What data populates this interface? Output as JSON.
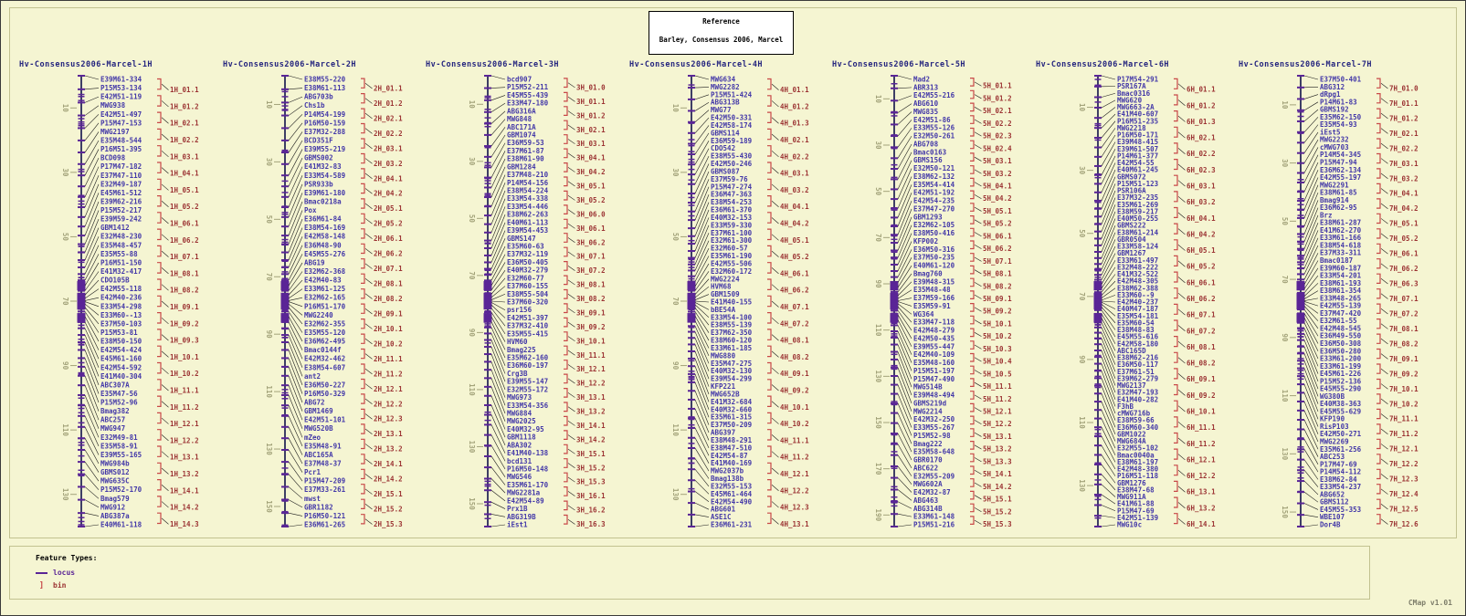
{
  "header": {
    "reference_label": "Reference",
    "reference_value": "Barley, Consensus 2006, Marcel"
  },
  "footer": {
    "feature_types_label": "Feature Types:",
    "locus_label": "locus",
    "bin_label": "bin",
    "bin_glyph": "]"
  },
  "app": {
    "version": "CMap v1.01"
  },
  "colors": {
    "background": "#f5f5d2",
    "panel_border": "#c2c290",
    "backbone": "#10104a",
    "feature_purple": "#5a2596",
    "locus_text": "#4338a8",
    "bin_text": "#9c3434",
    "bracket_red": "#c84848",
    "ruler": "#a3a37a",
    "title_text": "#24247e",
    "connector": "#1c1c1c"
  },
  "chart_data": {
    "type": "linkage-map",
    "title": "Barley, Consensus 2006, Marcel",
    "legend_position": "bottom-left",
    "maps": [
      {
        "name": "Hv-Consensus2006-Marcel-1H",
        "ruler_ticks": [
          10,
          30,
          50,
          70,
          90,
          110,
          130
        ],
        "max_position": 140,
        "loci": [
          "E39M61-334",
          "P15M53-134",
          "E42M51-119",
          "MWG938",
          "E42M51-497",
          "P15M47-153",
          "MWG2197",
          "E35M48-544",
          "P16M51-395",
          "BCD098",
          "P17M47-182",
          "E37M47-110",
          "E32M49-187",
          "E45M61-512",
          "E39M62-216",
          "P15M52-217",
          "E39M59-242",
          "GBM1412",
          "E32M48-230",
          "E35M48-457",
          "E35M55-88",
          "P16M51-150",
          "E41M32-417",
          "CDO105B",
          "E42M55-118",
          "E42M40-236",
          "E33M54-298",
          "E33M60--13",
          "E37M50-103",
          "P15M53-81",
          "E38M50-150",
          "E42M54-424",
          "E45M61-160",
          "E42M54-592",
          "E41M40-304",
          "ABC307A",
          "E35M47-56",
          "P15M52-96",
          "Bmag382",
          "ABC257",
          "MWG947",
          "E32M49-81",
          "E35M58-91",
          "E39M55-165",
          "MWG984b",
          "GBMS012",
          "MWG635C",
          "P15M52-170",
          "Bmag579",
          "MWG912",
          "ABG387a",
          "E40M61-118"
        ],
        "bins": [
          "1H_01.1",
          "1H_01.2",
          "1H_02.1",
          "1H_02.2",
          "1H_03.1",
          "1H_04.1",
          "1H_05.1",
          "1H_05.2",
          "1H_06.1",
          "1H_06.2",
          "1H_07.1",
          "1H_08.1",
          "1H_08.2",
          "1H_09.1",
          "1H_09.2",
          "1H_09.3",
          "1H_10.1",
          "1H_10.2",
          "1H_11.1",
          "1H_11.2",
          "1H_12.1",
          "1H_12.2",
          "1H_13.1",
          "1H_13.2",
          "1H_14.1",
          "1H_14.2",
          "1H_14.3"
        ]
      },
      {
        "name": "Hv-Consensus2006-Marcel-2H",
        "ruler_ticks": [
          10,
          30,
          50,
          70,
          90,
          110,
          130,
          150
        ],
        "max_position": 157,
        "loci": [
          "E38M55-220",
          "E38M61-113",
          "ABG703b",
          "Chs1b",
          "P14M54-199",
          "P16M50-159",
          "E37M32-288",
          "BCD351F",
          "E39M55-219",
          "GBMS002",
          "E41M32-83",
          "E33M54-589",
          "PSR933b",
          "E39M61-180",
          "Bmac0218a",
          "Pox",
          "E36M61-84",
          "E38M54-169",
          "E42M58-148",
          "E36M48-90",
          "E45M55-276",
          "ABG19",
          "E32M62-368",
          "E42M40-83",
          "E33M61-125",
          "E32M62-165",
          "P16M51-170",
          "MWG2240",
          "E32M62-355",
          "E35M55-120",
          "E36M62-495",
          "Bmac0144f",
          "E42M32-462",
          "E38M54-607",
          "ant2",
          "E36M50-227",
          "P16M50-329",
          "ABG72",
          "GBM1469",
          "E42M51-101",
          "MWG520B",
          "mZeo",
          "E35M48-91",
          "ABC165A",
          "E37M48-37",
          "Pcr1",
          "P15M47-209",
          "E37M33-261",
          "mwst",
          "GBR1182",
          "P16M50-121",
          "E36M61-265"
        ],
        "bins": [
          "2H_01.1",
          "2H_01.2",
          "2H_02.1",
          "2H_02.2",
          "2H_03.1",
          "2H_03.2",
          "2H_04.1",
          "2H_04.2",
          "2H_05.1",
          "2H_05.2",
          "2H_06.1",
          "2H_06.2",
          "2H_07.1",
          "2H_08.1",
          "2H_08.2",
          "2H_09.1",
          "2H_10.1",
          "2H_10.2",
          "2H_11.1",
          "2H_11.2",
          "2H_12.1",
          "2H_12.2",
          "2H_12.3",
          "2H_13.1",
          "2H_13.2",
          "2H_14.1",
          "2H_14.2",
          "2H_15.1",
          "2H_15.2",
          "2H_15.3"
        ]
      },
      {
        "name": "Hv-Consensus2006-Marcel-3H",
        "ruler_ticks": [
          10,
          30,
          50,
          70,
          90,
          110,
          130,
          150
        ],
        "max_position": 158,
        "loci": [
          "bcd907",
          "P15M52-211",
          "E45M55-439",
          "E33M47-180",
          "ABG316A",
          "MWG848",
          "ABC171A",
          "GBM1074",
          "E36M59-53",
          "E37M61-87",
          "E38M61-90",
          "GBM1284",
          "E37M48-210",
          "P14M54-156",
          "E38M54-224",
          "E33M54-338",
          "E33M54-446",
          "E38M62-263",
          "E40M61-113",
          "E39M54-453",
          "GBMS147",
          "E35M60-63",
          "E37M32-119",
          "E36M50-405",
          "E40M32-279",
          "E32M60-77",
          "E37M60-155",
          "E38M55-504",
          "E37M60-320",
          "psr156",
          "E42M51-397",
          "E37M32-410",
          "E35M55-415",
          "HVM60",
          "Bmag225",
          "E35M62-160",
          "E36M60-197",
          "Crg3B",
          "E39M55-147",
          "E32M55-172",
          "MWG973",
          "E33M54-356",
          "MWG884",
          "MWG2025",
          "E40M32-95",
          "GBM1118",
          "ABA302",
          "E41M40-138",
          "bcd131",
          "P16M50-148",
          "MWG546",
          "E35M61-170",
          "MWG2281a",
          "E42M54-89",
          "Prx1B",
          "ABG319B",
          "iEst1"
        ],
        "bins": [
          "3H_01.0",
          "3H_01.1",
          "3H_01.2",
          "3H_02.1",
          "3H_03.1",
          "3H_04.1",
          "3H_04.2",
          "3H_05.1",
          "3H_05.2",
          "3H_06.0",
          "3H_06.1",
          "3H_06.2",
          "3H_07.1",
          "3H_07.2",
          "3H_08.1",
          "3H_08.2",
          "3H_09.1",
          "3H_09.2",
          "3H_10.1",
          "3H_11.1",
          "3H_12.1",
          "3H_12.2",
          "3H_13.1",
          "3H_13.2",
          "3H_14.1",
          "3H_14.2",
          "3H_15.1",
          "3H_15.2",
          "3H_15.3",
          "3H_16.1",
          "3H_16.2",
          "3H_16.3"
        ]
      },
      {
        "name": "Hv-Consensus2006-Marcel-4H",
        "ruler_ticks": [
          10,
          30,
          50,
          70,
          90,
          110,
          130
        ],
        "max_position": 140,
        "loci": [
          "MWG634",
          "MWG2282",
          "P15M51-424",
          "ABG313B",
          "MWG77",
          "E42M50-331",
          "E42M58-174",
          "GBMS114",
          "E36M59-189",
          "CDO542",
          "E38M55-430",
          "E42M50-246",
          "GBMS087",
          "E37M59-76",
          "P15M47-274",
          "E36M47-363",
          "E38M54-253",
          "E36M61-370",
          "E40M32-153",
          "E33M59-330",
          "E37M61-100",
          "E32M61-300",
          "E32M60-57",
          "E35M61-190",
          "E42M55-506",
          "E32M60-172",
          "MWG2224",
          "HVM68",
          "GBM1509",
          "E41M40-155",
          "bBE54A",
          "E33M54-100",
          "E38M55-139",
          "E37M62-350",
          "E38M60-120",
          "E33M61-185",
          "MWG880",
          "E35M47-275",
          "E40M32-130",
          "E39M54-299",
          "KFP221",
          "MWG652B",
          "E41M32-684",
          "E40M32-660",
          "E35M61-315",
          "E37M50-209",
          "ABG397",
          "E38M48-291",
          "E38M47-510",
          "E42M54-87",
          "E41M40-169",
          "MWG2037b",
          "Bmag138b",
          "E32M55-153",
          "E45M61-464",
          "E42M54-490",
          "ABG601",
          "ASE1C",
          "E36M61-231"
        ],
        "bins": [
          "4H_01.1",
          "4H_01.2",
          "4H_01.3",
          "4H_02.1",
          "4H_02.2",
          "4H_03.1",
          "4H_03.2",
          "4H_04.1",
          "4H_04.2",
          "4H_05.1",
          "4H_05.2",
          "4H_06.1",
          "4H_06.2",
          "4H_07.1",
          "4H_07.2",
          "4H_08.1",
          "4H_08.2",
          "4H_09.1",
          "4H_09.2",
          "4H_10.1",
          "4H_10.2",
          "4H_11.1",
          "4H_11.2",
          "4H_12.1",
          "4H_12.2",
          "4H_12.3",
          "4H_13.1"
        ]
      },
      {
        "name": "Hv-Consensus2006-Marcel-5H",
        "ruler_ticks": [
          10,
          30,
          50,
          70,
          90,
          110,
          130,
          150,
          170,
          190
        ],
        "max_position": 195,
        "loci": [
          "Mad2",
          "ABR313",
          "E42M55-216",
          "ABG610",
          "MWG835",
          "E42M51-86",
          "E33M55-126",
          "E32M50-261",
          "ABG708",
          "Bmac0163",
          "GBMS156",
          "E32M50-121",
          "E38M62-132",
          "E35M54-414",
          "E42M51-192",
          "E42M54-235",
          "E37M47-270",
          "GBM1293",
          "E32M62-105",
          "E38M50-416",
          "KFP002",
          "E36M50-316",
          "E37M50-235",
          "E40M61-120",
          "Bmag760",
          "E39M48-315",
          "E35M48-48",
          "E37M59-166",
          "E35M59-91",
          "WG364",
          "E33M47-118",
          "E42M48-279",
          "E42M50-435",
          "E39M55-447",
          "E42M40-109",
          "E35M48-160",
          "P15M51-197",
          "P15M47-490",
          "MWG514B",
          "E39M48-494",
          "GBMS219d",
          "MWG2214",
          "E42M32-250",
          "E33M55-267",
          "P15M52-98",
          "Bmag222",
          "E35M58-648",
          "GBR0170",
          "ABC622",
          "E32M55-209",
          "MWG602A",
          "E42M32-87",
          "ABG463",
          "ABG314B",
          "E33M61-148",
          "P15M51-216"
        ],
        "bins": [
          "5H_01.1",
          "5H_01.2",
          "5H_02.1",
          "5H_02.2",
          "5H_02.3",
          "5H_02.4",
          "5H_03.1",
          "5H_03.2",
          "5H_04.1",
          "5H_04.2",
          "5H_05.1",
          "5H_05.2",
          "5H_06.1",
          "5H_06.2",
          "5H_07.1",
          "5H_08.1",
          "5H_08.2",
          "5H_09.1",
          "5H_09.2",
          "5H_10.1",
          "5H_10.2",
          "5H_10.3",
          "5H_10.4",
          "5H_10.5",
          "5H_11.1",
          "5H_11.2",
          "5H_12.1",
          "5H_12.2",
          "5H_13.1",
          "5H_13.2",
          "5H_13.3",
          "5H_14.1",
          "5H_14.2",
          "5H_15.1",
          "5H_15.2",
          "5H_15.3"
        ]
      },
      {
        "name": "Hv-Consensus2006-Marcel-6H",
        "ruler_ticks": [
          10,
          30,
          50,
          70,
          90,
          110,
          130
        ],
        "max_position": 143,
        "loci": [
          "P17M54-291",
          "PSR167A",
          "Bmac0316",
          "MWG620",
          "MWG663-2A",
          "E41M40-607",
          "P16M51-235",
          "MWG2218",
          "P16M50-171",
          "E39M48-415",
          "E39M61-507",
          "P14M61-377",
          "E42M54-55",
          "E40M61-245",
          "GBMS072",
          "P15M51-123",
          "PSR106A",
          "E37M32-235",
          "E35M61-269",
          "E38M59-217",
          "E40M50-255",
          "GBMS222",
          "E38M61-214",
          "GBR0504",
          "E33M58-124",
          "GBM1267",
          "E33M61-497",
          "E32M48-222",
          "E41M32-522",
          "E42M48-305",
          "E38M62-388",
          "E33M60--9",
          "E42M40-237",
          "E40M47-187",
          "E35M54-181",
          "E35M60-54",
          "E38M48-83",
          "E45M55-616",
          "E42M58-180",
          "ABC165D",
          "E38M62-216",
          "E36M50-117",
          "E37M61-51",
          "E39M62-279",
          "MWG2137",
          "E32M47-193",
          "E41M40-282",
          "F3hB",
          "cMWG716b",
          "E38M59-66",
          "E36M60-340",
          "GBM1022",
          "MWG684A",
          "E32M55-102",
          "Bmac0040a",
          "E38M61-197",
          "E42M48-380",
          "P16M51-118",
          "GBM1276",
          "E38M47-68",
          "MWG911A",
          "E41M61-88",
          "P15M47-69",
          "E42M51-139",
          "MWG10c"
        ],
        "bins": [
          "6H_01.1",
          "6H_01.2",
          "6H_01.3",
          "6H_02.1",
          "6H_02.2",
          "6H_02.3",
          "6H_03.1",
          "6H_03.2",
          "6H_04.1",
          "6H_04.2",
          "6H_05.1",
          "6H_05.2",
          "6H_06.1",
          "6H_06.2",
          "6H_07.1",
          "6H_07.2",
          "6H_08.1",
          "6H_08.2",
          "6H_09.1",
          "6H_09.2",
          "6H_10.1",
          "6H_11.1",
          "6H_11.2",
          "6H_12.1",
          "6H_12.2",
          "6H_13.1",
          "6H_13.2",
          "6H_14.1"
        ]
      },
      {
        "name": "Hv-Consensus2006-Marcel-7H",
        "ruler_ticks": [
          10,
          30,
          50,
          70,
          90,
          110,
          130,
          150
        ],
        "max_position": 155,
        "loci": [
          "E37M50-401",
          "ABG312",
          "dRpg1",
          "P14M61-83",
          "GBMS192",
          "E35M62-150",
          "E35M54-93",
          "iEst5",
          "MWG2232",
          "cMWG703",
          "P14M54-345",
          "P15M47-94",
          "E36M62-134",
          "E42M55-197",
          "MWG2291",
          "E38M61-85",
          "Bmag914",
          "E36M62-95",
          "Brz",
          "E38M61-287",
          "E41M62-270",
          "E33M61-166",
          "E38M54-618",
          "E37M33-311",
          "Bmac0187",
          "E39M60-187",
          "E33M54-201",
          "E38M61-193",
          "E38M61-354",
          "E33M48-265",
          "E42M55-139",
          "E37M47-420",
          "E32M61-55",
          "E42M48-545",
          "E36M49-550",
          "E36M50-308",
          "E36M50-280",
          "E33M61-200",
          "E33M61-199",
          "E45M61-226",
          "P15M52-136",
          "E45M55-290",
          "WG380B",
          "E40M38-363",
          "E45M55-629",
          "KFP190",
          "RisP103",
          "E42M50-271",
          "MWG2269",
          "E35M61-256",
          "ABC253",
          "P17M47-69",
          "P14M54-112",
          "E38M62-84",
          "E33M54-237",
          "ABG652",
          "GBMS112",
          "E45M55-353",
          "WBE107",
          "Dor4B"
        ],
        "bins": [
          "7H_01.0",
          "7H_01.1",
          "7H_01.2",
          "7H_02.1",
          "7H_02.2",
          "7H_03.1",
          "7H_03.2",
          "7H_04.1",
          "7H_04.2",
          "7H_05.1",
          "7H_05.2",
          "7H_06.1",
          "7H_06.2",
          "7H_06.3",
          "7H_07.1",
          "7H_07.2",
          "7H_08.1",
          "7H_08.2",
          "7H_09.1",
          "7H_09.2",
          "7H_10.1",
          "7H_10.2",
          "7H_11.1",
          "7H_11.2",
          "7H_12.1",
          "7H_12.2",
          "7H_12.3",
          "7H_12.4",
          "7H_12.5",
          "7H_12.6"
        ]
      }
    ]
  }
}
